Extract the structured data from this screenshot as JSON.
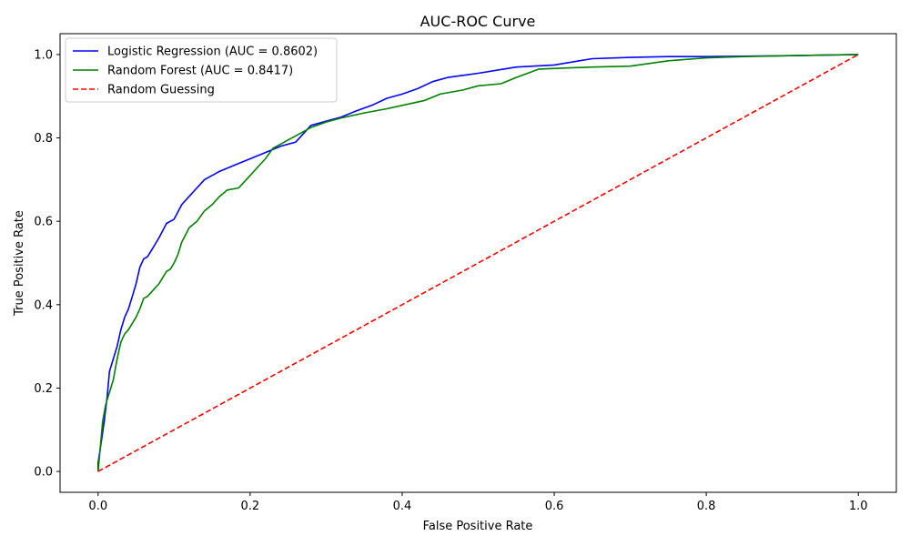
{
  "chart_data": {
    "type": "line",
    "title": "AUC-ROC Curve",
    "xlabel": "False Positive Rate",
    "ylabel": "True Positive Rate",
    "xlim": [
      -0.05,
      1.05
    ],
    "ylim": [
      -0.05,
      1.05
    ],
    "xticks": [
      "0.0",
      "0.2",
      "0.4",
      "0.6",
      "0.8",
      "1.0"
    ],
    "yticks": [
      "0.0",
      "0.2",
      "0.4",
      "0.6",
      "0.8",
      "1.0"
    ],
    "grid": false,
    "legend_position": "top-left",
    "series": [
      {
        "name": "Logistic Regression (AUC = 0.8602)",
        "color": "#0000ff",
        "style": "solid",
        "x": [
          0.0,
          0.0,
          0.005,
          0.008,
          0.012,
          0.015,
          0.02,
          0.025,
          0.03,
          0.035,
          0.04,
          0.045,
          0.05,
          0.055,
          0.06,
          0.065,
          0.07,
          0.08,
          0.09,
          0.1,
          0.11,
          0.12,
          0.13,
          0.14,
          0.145,
          0.15,
          0.16,
          0.18,
          0.2,
          0.22,
          0.24,
          0.26,
          0.28,
          0.3,
          0.32,
          0.34,
          0.36,
          0.38,
          0.4,
          0.42,
          0.44,
          0.46,
          0.48,
          0.5,
          0.55,
          0.6,
          0.65,
          0.7,
          0.75,
          0.8,
          0.9,
          1.0
        ],
        "y": [
          0.0,
          0.02,
          0.08,
          0.12,
          0.18,
          0.24,
          0.27,
          0.3,
          0.34,
          0.37,
          0.39,
          0.42,
          0.45,
          0.49,
          0.51,
          0.515,
          0.53,
          0.56,
          0.595,
          0.605,
          0.64,
          0.66,
          0.68,
          0.7,
          0.705,
          0.71,
          0.72,
          0.735,
          0.75,
          0.765,
          0.78,
          0.79,
          0.83,
          0.84,
          0.85,
          0.865,
          0.878,
          0.895,
          0.905,
          0.918,
          0.935,
          0.945,
          0.95,
          0.955,
          0.97,
          0.975,
          0.99,
          0.993,
          0.995,
          0.995,
          0.997,
          1.0
        ]
      },
      {
        "name": "Random Forest (AUC = 0.8417)",
        "color": "#008000",
        "style": "solid",
        "x": [
          0.0,
          0.003,
          0.006,
          0.01,
          0.015,
          0.02,
          0.025,
          0.03,
          0.035,
          0.04,
          0.05,
          0.055,
          0.06,
          0.065,
          0.07,
          0.08,
          0.09,
          0.095,
          0.1,
          0.105,
          0.11,
          0.12,
          0.13,
          0.14,
          0.15,
          0.16,
          0.17,
          0.185,
          0.19,
          0.2,
          0.21,
          0.22,
          0.23,
          0.24,
          0.25,
          0.26,
          0.28,
          0.3,
          0.32,
          0.35,
          0.38,
          0.4,
          0.43,
          0.45,
          0.48,
          0.5,
          0.53,
          0.55,
          0.58,
          0.62,
          0.65,
          0.7,
          0.75,
          0.8,
          0.85,
          0.9,
          1.0
        ],
        "y": [
          0.0,
          0.06,
          0.12,
          0.16,
          0.19,
          0.22,
          0.27,
          0.31,
          0.33,
          0.34,
          0.37,
          0.39,
          0.415,
          0.42,
          0.43,
          0.45,
          0.48,
          0.485,
          0.5,
          0.52,
          0.55,
          0.585,
          0.6,
          0.625,
          0.64,
          0.66,
          0.675,
          0.68,
          0.69,
          0.71,
          0.73,
          0.75,
          0.775,
          0.785,
          0.795,
          0.805,
          0.825,
          0.838,
          0.848,
          0.86,
          0.87,
          0.878,
          0.89,
          0.905,
          0.915,
          0.925,
          0.93,
          0.945,
          0.965,
          0.968,
          0.97,
          0.972,
          0.985,
          0.992,
          0.995,
          0.997,
          1.0
        ]
      },
      {
        "name": "Random Guessing",
        "color": "#ff0000",
        "style": "dashed",
        "x": [
          0.0,
          1.0
        ],
        "y": [
          0.0,
          1.0
        ]
      }
    ]
  }
}
